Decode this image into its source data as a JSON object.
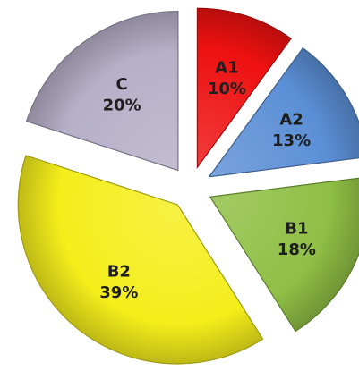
{
  "chart_data": {
    "type": "pie",
    "exploded": true,
    "start": "12 o'clock",
    "direction": "clockwise",
    "slices": [
      {
        "name": "A1",
        "percent": 10,
        "value_label": "10%",
        "color": "#ee1111"
      },
      {
        "name": "A2",
        "percent": 13,
        "value_label": "13%",
        "color": "#5b8fd6"
      },
      {
        "name": "B1",
        "percent": 18,
        "value_label": "18%",
        "color": "#8fbf45"
      },
      {
        "name": "B2",
        "percent": 39,
        "value_label": "39%",
        "color": "#f4ee1b"
      },
      {
        "name": "C",
        "percent": 20,
        "value_label": "20%",
        "color": "#b6afc8"
      }
    ]
  }
}
